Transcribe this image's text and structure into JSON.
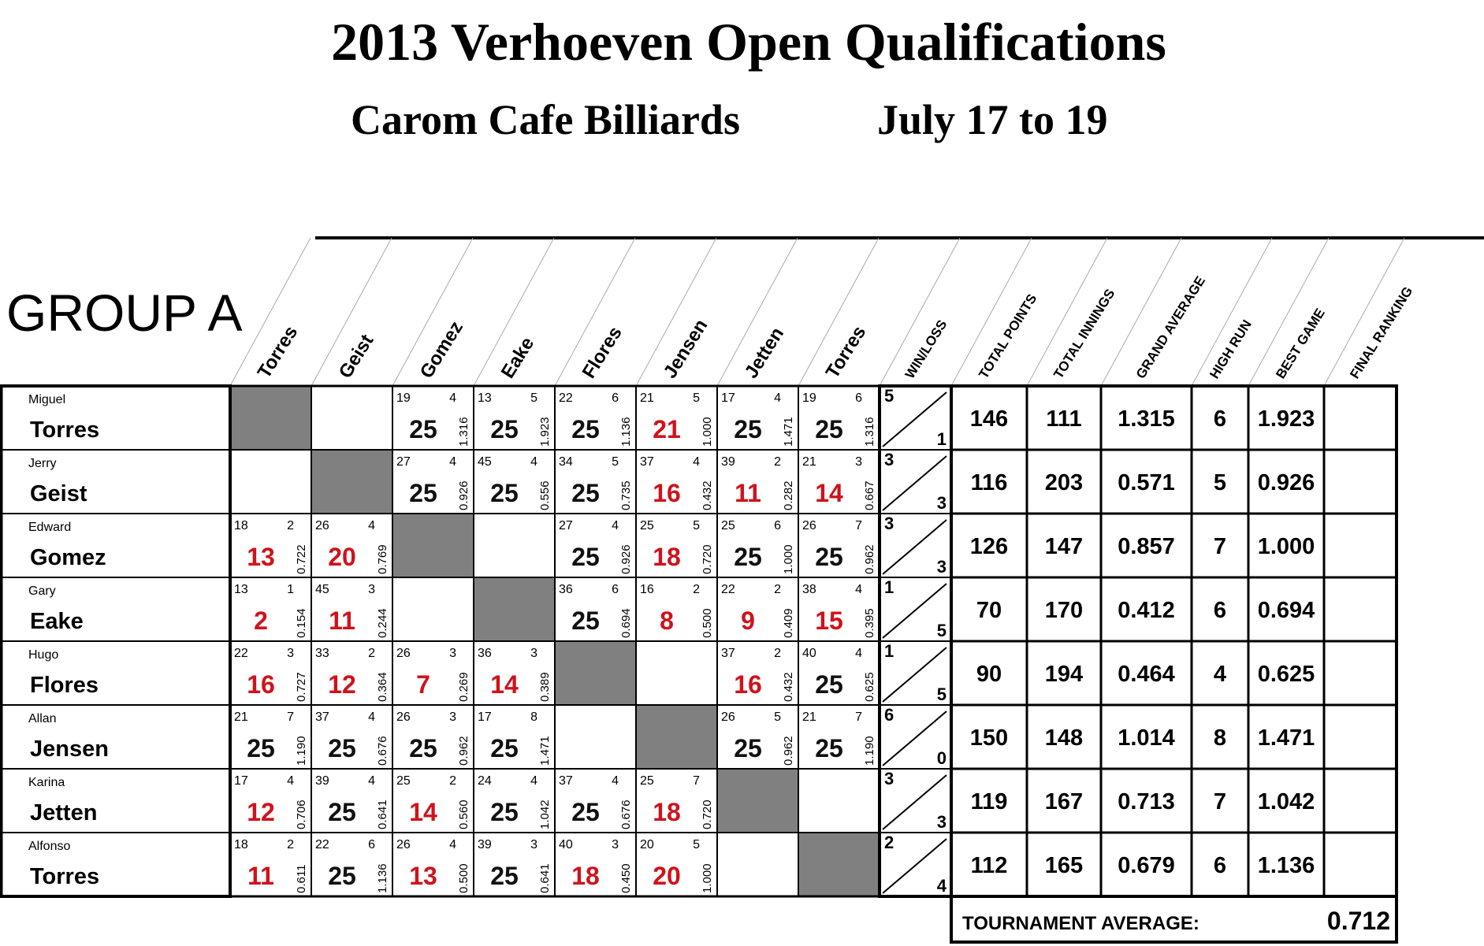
{
  "header": {
    "title": "2013 Verhoeven Open Qualifications",
    "venue": "Carom Cafe Billiards",
    "dates": "July 17 to 19"
  },
  "group": "GROUP A",
  "columns": [
    "Torres",
    "Geist",
    "Gomez",
    "Eake",
    "Flores",
    "Jensen",
    "Jetten",
    "Torres"
  ],
  "stat_columns": [
    "WIN/LOSS",
    "TOTAL POINTS",
    "TOTAL INNINGS",
    "GRAND AVERAGE",
    "HIGH RUN",
    "BEST GAME",
    "FINAL RANKING"
  ],
  "colors": {
    "win": "#111111",
    "loss": "#d0121b",
    "blocked": "#808080"
  },
  "players": [
    {
      "first": "Miguel",
      "last": "Torres",
      "games": [
        null,
        null,
        {
          "innings": 19,
          "high_run": 4,
          "score": 25,
          "average": "1.316"
        },
        {
          "innings": 13,
          "high_run": 5,
          "score": 25,
          "average": "1.923"
        },
        {
          "innings": 22,
          "high_run": 6,
          "score": 25,
          "average": "1.136"
        },
        {
          "innings": 21,
          "high_run": 5,
          "score": 21,
          "average": "1.000"
        },
        {
          "innings": 17,
          "high_run": 4,
          "score": 25,
          "average": "1.471"
        },
        {
          "innings": 19,
          "high_run": 6,
          "score": 25,
          "average": "1.316"
        }
      ],
      "wins": 5,
      "losses": 1,
      "total_points": 146,
      "total_innings": 111,
      "grand_average": "1.315",
      "high_run": 6,
      "best_game": "1.923"
    },
    {
      "first": "Jerry",
      "last": "Geist",
      "games": [
        null,
        null,
        {
          "innings": 27,
          "high_run": 4,
          "score": 25,
          "average": "0.926"
        },
        {
          "innings": 45,
          "high_run": 4,
          "score": 25,
          "average": "0.556"
        },
        {
          "innings": 34,
          "high_run": 5,
          "score": 25,
          "average": "0.735"
        },
        {
          "innings": 37,
          "high_run": 4,
          "score": 16,
          "average": "0.432"
        },
        {
          "innings": 39,
          "high_run": 2,
          "score": 11,
          "average": "0.282"
        },
        {
          "innings": 21,
          "high_run": 3,
          "score": 14,
          "average": "0.667"
        }
      ],
      "wins": 3,
      "losses": 3,
      "total_points": 116,
      "total_innings": 203,
      "grand_average": "0.571",
      "high_run": 5,
      "best_game": "0.926"
    },
    {
      "first": "Edward",
      "last": "Gomez",
      "games": [
        {
          "innings": 18,
          "high_run": 2,
          "score": 13,
          "average": "0.722"
        },
        {
          "innings": 26,
          "high_run": 4,
          "score": 20,
          "average": "0.769"
        },
        null,
        null,
        {
          "innings": 27,
          "high_run": 4,
          "score": 25,
          "average": "0.926"
        },
        {
          "innings": 25,
          "high_run": 5,
          "score": 18,
          "average": "0.720"
        },
        {
          "innings": 25,
          "high_run": 6,
          "score": 25,
          "average": "1.000"
        },
        {
          "innings": 26,
          "high_run": 7,
          "score": 25,
          "average": "0.962"
        }
      ],
      "wins": 3,
      "losses": 3,
      "total_points": 126,
      "total_innings": 147,
      "grand_average": "0.857",
      "high_run": 7,
      "best_game": "1.000"
    },
    {
      "first": "Gary",
      "last": "Eake",
      "games": [
        {
          "innings": 13,
          "high_run": 1,
          "score": 2,
          "average": "0.154"
        },
        {
          "innings": 45,
          "high_run": 3,
          "score": 11,
          "average": "0.244"
        },
        null,
        null,
        {
          "innings": 36,
          "high_run": 6,
          "score": 25,
          "average": "0.694"
        },
        {
          "innings": 16,
          "high_run": 2,
          "score": 8,
          "average": "0.500"
        },
        {
          "innings": 22,
          "high_run": 2,
          "score": 9,
          "average": "0.409"
        },
        {
          "innings": 38,
          "high_run": 4,
          "score": 15,
          "average": "0.395"
        }
      ],
      "wins": 1,
      "losses": 5,
      "total_points": 70,
      "total_innings": 170,
      "grand_average": "0.412",
      "high_run": 6,
      "best_game": "0.694"
    },
    {
      "first": "Hugo",
      "last": "Flores",
      "games": [
        {
          "innings": 22,
          "high_run": 3,
          "score": 16,
          "average": "0.727"
        },
        {
          "innings": 33,
          "high_run": 2,
          "score": 12,
          "average": "0.364"
        },
        {
          "innings": 26,
          "high_run": 3,
          "score": 7,
          "average": "0.269"
        },
        {
          "innings": 36,
          "high_run": 3,
          "score": 14,
          "average": "0.389"
        },
        null,
        null,
        {
          "innings": 37,
          "high_run": 2,
          "score": 16,
          "average": "0.432"
        },
        {
          "innings": 40,
          "high_run": 4,
          "score": 25,
          "average": "0.625"
        }
      ],
      "wins": 1,
      "losses": 5,
      "total_points": 90,
      "total_innings": 194,
      "grand_average": "0.464",
      "high_run": 4,
      "best_game": "0.625"
    },
    {
      "first": "Allan",
      "last": "Jensen",
      "games": [
        {
          "innings": 21,
          "high_run": 7,
          "score": 25,
          "average": "1.190"
        },
        {
          "innings": 37,
          "high_run": 4,
          "score": 25,
          "average": "0.676"
        },
        {
          "innings": 26,
          "high_run": 3,
          "score": 25,
          "average": "0.962"
        },
        {
          "innings": 17,
          "high_run": 8,
          "score": 25,
          "average": "1.471"
        },
        null,
        null,
        {
          "innings": 26,
          "high_run": 5,
          "score": 25,
          "average": "0.962"
        },
        {
          "innings": 21,
          "high_run": 7,
          "score": 25,
          "average": "1.190"
        }
      ],
      "wins": 6,
      "losses": 0,
      "total_points": 150,
      "total_innings": 148,
      "grand_average": "1.014",
      "high_run": 8,
      "best_game": "1.471"
    },
    {
      "first": "Karina",
      "last": "Jetten",
      "games": [
        {
          "innings": 17,
          "high_run": 4,
          "score": 12,
          "average": "0.706"
        },
        {
          "innings": 39,
          "high_run": 4,
          "score": 25,
          "average": "0.641"
        },
        {
          "innings": 25,
          "high_run": 2,
          "score": 14,
          "average": "0.560"
        },
        {
          "innings": 24,
          "high_run": 4,
          "score": 25,
          "average": "1.042"
        },
        {
          "innings": 37,
          "high_run": 4,
          "score": 25,
          "average": "0.676"
        },
        {
          "innings": 25,
          "high_run": 7,
          "score": 18,
          "average": "0.720"
        },
        null,
        null
      ],
      "wins": 3,
      "losses": 3,
      "total_points": 119,
      "total_innings": 167,
      "grand_average": "0.713",
      "high_run": 7,
      "best_game": "1.042"
    },
    {
      "first": "Alfonso",
      "last": "Torres",
      "games": [
        {
          "innings": 18,
          "high_run": 2,
          "score": 11,
          "average": "0.611"
        },
        {
          "innings": 22,
          "high_run": 6,
          "score": 25,
          "average": "1.136"
        },
        {
          "innings": 26,
          "high_run": 4,
          "score": 13,
          "average": "0.500"
        },
        {
          "innings": 39,
          "high_run": 3,
          "score": 25,
          "average": "0.641"
        },
        {
          "innings": 40,
          "high_run": 3,
          "score": 18,
          "average": "0.450"
        },
        {
          "innings": 20,
          "high_run": 5,
          "score": 20,
          "average": "1.000"
        },
        null,
        null
      ],
      "wins": 2,
      "losses": 4,
      "total_points": 112,
      "total_innings": 165,
      "grand_average": "0.679",
      "high_run": 6,
      "best_game": "1.136"
    }
  ],
  "tournament_average": {
    "label": "TOURNAMENT AVERAGE:",
    "value": "0.712"
  }
}
